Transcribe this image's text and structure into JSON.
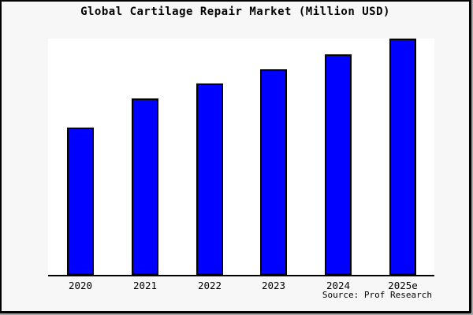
{
  "title": "Global Cartilage Repair Market (Million USD)",
  "source_credit": "Source: Prof Research",
  "window": {
    "frame_color": "#000000",
    "background": "#f7f7f7"
  },
  "chart_data": {
    "type": "bar",
    "title": "Global Cartilage Repair Market (Million USD)",
    "categories": [
      "2020",
      "2021",
      "2022",
      "2023",
      "2024",
      "2025e"
    ],
    "values": [
      187,
      224,
      243,
      261,
      280,
      300
    ],
    "value_note": "No y-axis, gridlines or data labels are shown in the image; values are relative bar heights measured in screen pixels.",
    "xlabel": "",
    "ylabel": "",
    "legend": "none",
    "grid": false,
    "y_axis": "hidden",
    "bar_color": "#0000ff",
    "bar_border_color": "#000000",
    "plot_background": "#ffffff",
    "annotation": "Source: Prof Research"
  }
}
